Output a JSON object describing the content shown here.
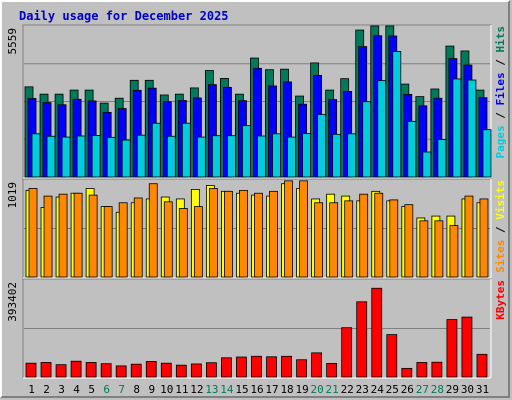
{
  "chart_data": {
    "type": "bar",
    "title": "Daily usage for December 2025",
    "categories": [
      "1",
      "2",
      "3",
      "4",
      "5",
      "6",
      "7",
      "8",
      "9",
      "10",
      "11",
      "12",
      "13",
      "14",
      "15",
      "16",
      "17",
      "18",
      "19",
      "20",
      "21",
      "22",
      "23",
      "24",
      "25",
      "26",
      "27",
      "28",
      "29",
      "30",
      "31"
    ],
    "weekend_days": [
      "6",
      "7",
      "13",
      "14",
      "20",
      "21",
      "27",
      "28"
    ],
    "panels": [
      {
        "name": "hits-files-pages",
        "ymax_label": "5559",
        "ymax": 5559,
        "legend": [
          {
            "text": "Pages",
            "color": "#00ccdd"
          },
          {
            "text": " / ",
            "color": "#000000"
          },
          {
            "text": "Files",
            "color": "#0000ff"
          },
          {
            "text": " / ",
            "color": "#000000"
          },
          {
            "text": "Hits",
            "color": "#007a5a"
          }
        ],
        "series": [
          {
            "name": "Hits",
            "color": "#007a5a",
            "values": [
              3320,
              3050,
              3050,
              3200,
              3200,
              2720,
              2900,
              3560,
              3560,
              3020,
              3050,
              3280,
              3920,
              3630,
              3050,
              4380,
              3950,
              3970,
              2980,
              4200,
              3200,
              3620,
              5410,
              5560,
              5560,
              3420,
              2960,
              3240,
              4820,
              4640,
              3200
            ]
          },
          {
            "name": "Files",
            "color": "#0000ff",
            "values": [
              2890,
              2740,
              2660,
              2860,
              2800,
              2380,
              2520,
              3190,
              3270,
              2770,
              2820,
              2910,
              3400,
              3300,
              2810,
              4000,
              3350,
              3500,
              2680,
              3740,
              2850,
              3150,
              4800,
              5200,
              5190,
              3040,
              2620,
              2900,
              4360,
              4120,
              2920
            ]
          },
          {
            "name": "Pages",
            "color": "#00ccdd",
            "values": [
              1590,
              1500,
              1470,
              1510,
              1530,
              1460,
              1360,
              1540,
              1980,
              1500,
              1980,
              1470,
              1520,
              1520,
              1890,
              1510,
              1590,
              1470,
              1600,
              2300,
              1570,
              1590,
              2770,
              3550,
              4620,
              2050,
              920,
              1380,
              3610,
              3570,
              1740
            ]
          }
        ]
      },
      {
        "name": "visits-sites",
        "ymax_label": "1019",
        "ymax": 1019,
        "legend": [
          {
            "text": "Sites",
            "color": "#ff8800"
          },
          {
            "text": " / ",
            "color": "#000000"
          },
          {
            "text": "Visits",
            "color": "#ffff00"
          }
        ],
        "series": [
          {
            "name": "Visits",
            "color": "#ffff00",
            "values": [
              910,
              730,
              840,
              880,
              930,
              740,
              680,
              780,
              820,
              840,
              820,
              920,
              960,
              900,
              880,
              860,
              850,
              980,
              930,
              820,
              870,
              850,
              800,
              900,
              800,
              740,
              620,
              640,
              640,
              820,
              780
            ]
          },
          {
            "name": "Sites",
            "color": "#ff8800",
            "values": [
              930,
              850,
              870,
              880,
              860,
              740,
              780,
              830,
              980,
              790,
              720,
              740,
              930,
              900,
              910,
              880,
              900,
              1010,
              1010,
              780,
              780,
              800,
              870,
              880,
              810,
              760,
              590,
              590,
              540,
              850,
              820
            ]
          }
        ]
      },
      {
        "name": "kbytes",
        "ymax_label": "393402",
        "ymax": 393402,
        "legend": [
          {
            "text": "KBytes",
            "color": "#ff0000"
          }
        ],
        "series": [
          {
            "name": "KBytes",
            "color": "#ff0000",
            "values": [
              56000,
              59000,
              50000,
              64000,
              59000,
              54000,
              45000,
              52000,
              63000,
              56000,
              48000,
              53000,
              58000,
              78000,
              81000,
              84000,
              82000,
              84000,
              70000,
              98000,
              55000,
              200000,
              305000,
              360000,
              172000,
              35000,
              59000,
              60000,
              233000,
              243000,
              92000
            ]
          }
        ]
      }
    ]
  }
}
